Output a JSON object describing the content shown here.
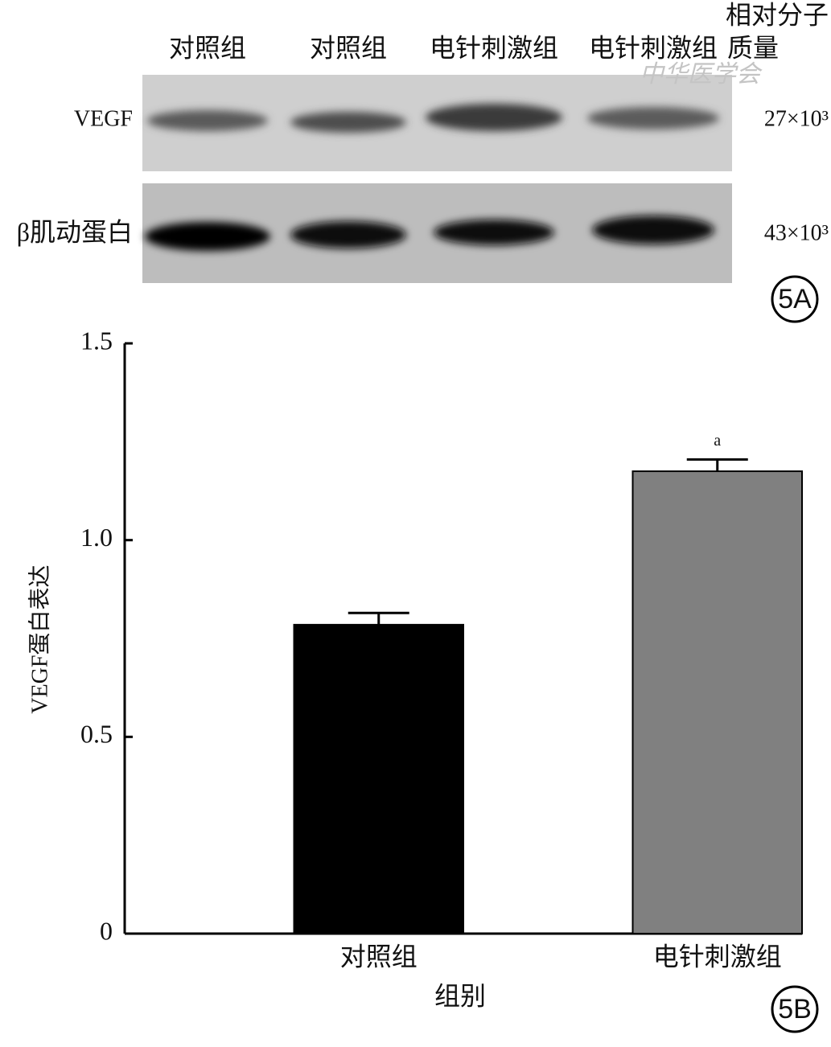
{
  "blot": {
    "lanes": [
      "对照组",
      "对照组",
      "电针刺激组",
      "电针刺激组"
    ],
    "mass_header": [
      "相对分子",
      "质量"
    ],
    "rows": [
      {
        "label": "VEGF",
        "mass": "27×10³"
      },
      {
        "label": "β肌动蛋白",
        "mass": "43×10³"
      }
    ],
    "watermark": "中华医学会",
    "panel_label": "5A"
  },
  "chart_data": {
    "type": "bar",
    "panel_label": "5B",
    "categories": [
      "对照组",
      "电针刺激组"
    ],
    "values": [
      0.785,
      1.175
    ],
    "errors": [
      0.03,
      0.03
    ],
    "colors": [
      "#000000",
      "#808080"
    ],
    "value_annotations": [
      null,
      "a"
    ],
    "x_label": "组别",
    "y_label": "VEGF蛋白表达",
    "ylim": [
      0,
      1.5
    ],
    "yticks": [
      0,
      0.5,
      {
        "value": 1,
        "label": "1.0"
      },
      1.5
    ]
  }
}
